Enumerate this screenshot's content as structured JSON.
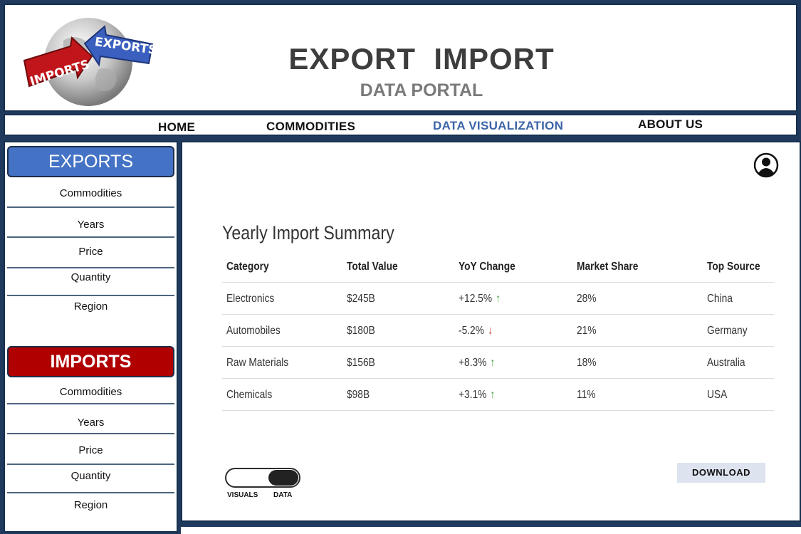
{
  "header": {
    "logo_words": [
      "IMPORTS",
      "EXPORTS"
    ],
    "title": "EXPORT  IMPORT",
    "subtitle": "DATA PORTAL"
  },
  "nav": {
    "items": [
      "HOME",
      "COMMODITIES",
      "DATA VISUALIZATION",
      "ABOUT US"
    ],
    "active": "DATA VISUALIZATION"
  },
  "sidebar": {
    "exports": {
      "label": "EXPORTS",
      "items": [
        "Commodities",
        "Years",
        "Price",
        "Quantity",
        "Region"
      ]
    },
    "imports": {
      "label": "IMPORTS",
      "items": [
        "Commodities",
        "Years",
        "Price",
        "Quantity",
        "Region"
      ]
    }
  },
  "main": {
    "user_icon": "user-circle-icon",
    "table": {
      "title": "Yearly Import Summary",
      "columns": [
        "Category",
        "Total Value",
        "YoY Change",
        "Market Share",
        "Top Source"
      ],
      "rows": [
        {
          "category": "Electronics",
          "total_value": "$245B",
          "yoy_change": "+12.5%",
          "trend": "up",
          "market_share": "28%",
          "top_source": "China"
        },
        {
          "category": "Automobiles",
          "total_value": "$180B",
          "yoy_change": "-5.2%",
          "trend": "down",
          "market_share": "21%",
          "top_source": "Germany"
        },
        {
          "category": "Raw Materials",
          "total_value": "$156B",
          "yoy_change": "+8.3%",
          "trend": "up",
          "market_share": "18%",
          "top_source": "Australia"
        },
        {
          "category": "Chemicals",
          "total_value": "$98B",
          "yoy_change": "+3.1%",
          "trend": "up",
          "market_share": "11%",
          "top_source": "USA"
        }
      ]
    },
    "toggle": {
      "left_label": "VISUALS",
      "right_label": "DATA",
      "selected": "DATA"
    },
    "download_label": "DOWNLOAD"
  },
  "colors": {
    "frame": "#1f3a5c",
    "exports_button": "#4472c4",
    "imports_button": "#b00000",
    "nav_active": "#3c64a8",
    "trend_up": "#3a9a3a",
    "trend_down": "#c0392b"
  }
}
